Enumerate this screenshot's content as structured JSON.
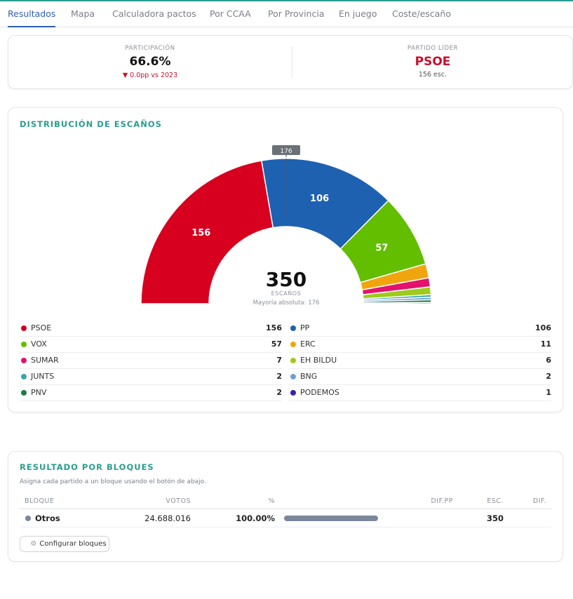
{
  "tabs": [
    {
      "label": "Resultados",
      "active": true
    },
    {
      "label": "Mapa"
    },
    {
      "label": "Calculadora pactos"
    },
    {
      "label": "Por CCAA"
    },
    {
      "label": "Por Provincia"
    },
    {
      "label": "En juego"
    },
    {
      "label": "Coste/escaño"
    }
  ],
  "summary": {
    "participation_label": "PARTICIPACIÓN",
    "participation_value": "66.6%",
    "participation_change": "▼ 0.0pp vs 2023",
    "leader_label": "PARTIDO LÍDER",
    "leader_value": "PSOE",
    "leader_seats": "156 esc."
  },
  "distribution": {
    "title": "DISTRIBUCIÓN DE ESCAÑOS",
    "total": "350",
    "total_label": "ESCAÑOS",
    "majority_text": "Mayoría absoluta: 176",
    "majority_marker": "176",
    "parties": [
      {
        "name": "PSOE",
        "seats": 156,
        "color": "#d7001f"
      },
      {
        "name": "PP",
        "seats": 106,
        "color": "#1e61b0"
      },
      {
        "name": "VOX",
        "seats": 57,
        "color": "#63be00"
      },
      {
        "name": "ERC",
        "seats": 11,
        "color": "#f0a50f"
      },
      {
        "name": "SUMAR",
        "seats": 7,
        "color": "#e3126d"
      },
      {
        "name": "EH BILDU",
        "seats": 6,
        "color": "#9ecb1b"
      },
      {
        "name": "JUNTS",
        "seats": 2,
        "color": "#3ba3b3"
      },
      {
        "name": "BNG",
        "seats": 2,
        "color": "#6f9fd0"
      },
      {
        "name": "PNV",
        "seats": 2,
        "color": "#1d7a4a"
      },
      {
        "name": "PODEMOS",
        "seats": 1,
        "color": "#3a1fb0"
      }
    ]
  },
  "blocks": {
    "title": "RESULTADO POR BLOQUES",
    "subtitle": "Asigna cada partido a un bloque usando el botón de abajo.",
    "headers": {
      "bloque": "BLOQUE",
      "votos": "VOTOS",
      "pct": "%",
      "difpp": "DIF.PP",
      "esc": "ESC.",
      "dif": "DIF."
    },
    "rows": [
      {
        "name": "Otros",
        "votes": "24.688.016",
        "pct": "100.00%",
        "bar_fraction": 1.0,
        "seats": "350",
        "color": "#7d879c"
      }
    ],
    "configure_label": "Configurar bloques"
  }
}
